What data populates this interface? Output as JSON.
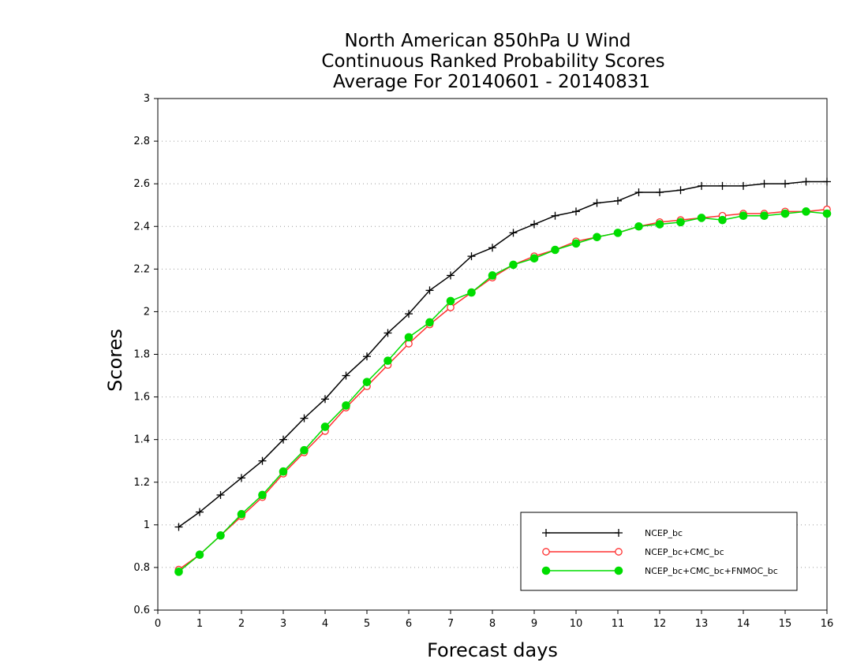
{
  "chart_data": {
    "type": "line",
    "title": [
      "North American 850hPa U Wind",
      "Continuous Ranked Probability Scores",
      "Average For 20140601 - 20140831"
    ],
    "xlabel": "Forecast days",
    "ylabel": "Scores",
    "xlim": [
      0,
      16
    ],
    "ylim": [
      0.6,
      3
    ],
    "x_ticks": [
      "0",
      "1",
      "2",
      "3",
      "4",
      "5",
      "6",
      "7",
      "8",
      "9",
      "10",
      "11",
      "12",
      "13",
      "14",
      "15",
      "16"
    ],
    "y_ticks": [
      "0.6",
      "0.8",
      "1",
      "1.2",
      "1.4",
      "1.6",
      "1.8",
      "2",
      "2.2",
      "2.4",
      "2.6",
      "2.8",
      "3"
    ],
    "grid": "horizontal dotted",
    "legend_position": "bottom-right",
    "x": [
      0.5,
      1,
      1.5,
      2,
      2.5,
      3,
      3.5,
      4,
      4.5,
      5,
      5.5,
      6,
      6.5,
      7,
      7.5,
      8,
      8.5,
      9,
      9.5,
      10,
      10.5,
      11,
      11.5,
      12,
      12.5,
      13,
      13.5,
      14,
      14.5,
      15,
      15.5,
      16
    ],
    "series": [
      {
        "name": "NCEP_bc",
        "color": "#000000",
        "marker": "plus",
        "values": [
          0.99,
          1.06,
          1.14,
          1.22,
          1.3,
          1.4,
          1.5,
          1.59,
          1.7,
          1.79,
          1.9,
          1.99,
          2.1,
          2.17,
          2.26,
          2.3,
          2.37,
          2.41,
          2.45,
          2.47,
          2.51,
          2.52,
          2.56,
          2.56,
          2.57,
          2.59,
          2.59,
          2.59,
          2.6,
          2.6,
          2.61,
          2.61
        ]
      },
      {
        "name": "NCEP_bc+CMC_bc",
        "color": "#ff3030",
        "marker": "open-circle",
        "values": [
          0.79,
          0.86,
          0.95,
          1.04,
          1.13,
          1.24,
          1.34,
          1.44,
          1.55,
          1.65,
          1.75,
          1.85,
          1.94,
          2.02,
          2.09,
          2.16,
          2.22,
          2.26,
          2.29,
          2.33,
          2.35,
          2.37,
          2.4,
          2.42,
          2.43,
          2.44,
          2.45,
          2.46,
          2.46,
          2.47,
          2.47,
          2.48
        ]
      },
      {
        "name": "NCEP_bc+CMC_bc+FNMOC_bc",
        "color": "#00dd00",
        "marker": "filled-circle",
        "values": [
          0.78,
          0.86,
          0.95,
          1.05,
          1.14,
          1.25,
          1.35,
          1.46,
          1.56,
          1.67,
          1.77,
          1.88,
          1.95,
          2.05,
          2.09,
          2.17,
          2.22,
          2.25,
          2.29,
          2.32,
          2.35,
          2.37,
          2.4,
          2.41,
          2.42,
          2.44,
          2.43,
          2.45,
          2.45,
          2.46,
          2.47,
          2.46
        ]
      }
    ]
  }
}
